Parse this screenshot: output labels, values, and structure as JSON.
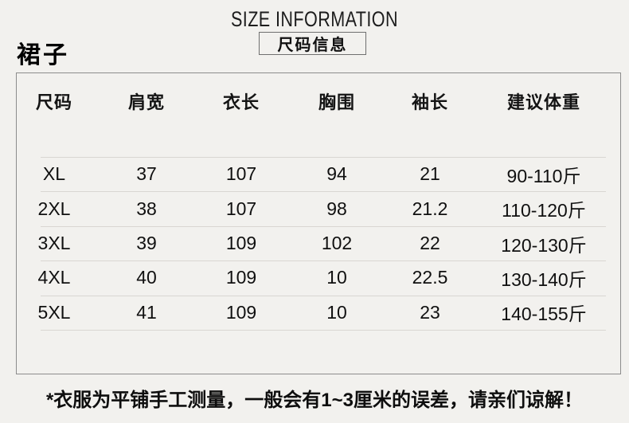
{
  "header": {
    "title_en": "SIZE INFORMATION",
    "title_cn": "尺码信息",
    "product_label": "裙子"
  },
  "table": {
    "columns": [
      "尺码",
      "肩宽",
      "衣长",
      "胸围",
      "袖长",
      "建议体重"
    ],
    "rows": [
      {
        "size": "XL",
        "shoulder": "37",
        "length": "107",
        "bust": "94",
        "sleeve": "21",
        "weight": "90-110斤"
      },
      {
        "size": "2XL",
        "shoulder": "38",
        "length": "107",
        "bust": "98",
        "sleeve": "21.2",
        "weight": "110-120斤"
      },
      {
        "size": "3XL",
        "shoulder": "39",
        "length": "109",
        "bust": "102",
        "sleeve": "22",
        "weight": "120-130斤"
      },
      {
        "size": "4XL",
        "shoulder": "40",
        "length": "109",
        "bust": "10",
        "sleeve": "22.5",
        "weight": "130-140斤"
      },
      {
        "size": "5XL",
        "shoulder": "41",
        "length": "109",
        "bust": "10",
        "sleeve": "23",
        "weight": "140-155斤"
      }
    ]
  },
  "footer": {
    "note": "*衣服为平铺手工测量，一般会有1~3厘米的误差，请亲们谅解！"
  }
}
